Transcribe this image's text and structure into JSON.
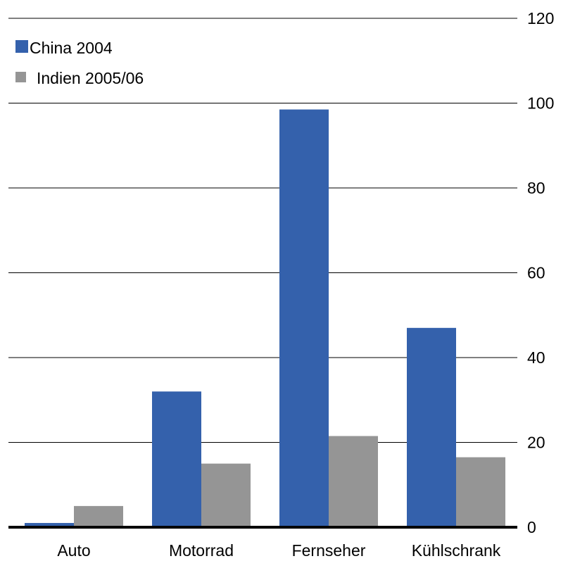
{
  "chart_data": {
    "type": "bar",
    "categories": [
      "Auto",
      "Motorrad",
      "Fernseher",
      "Kühlschrank"
    ],
    "series": [
      {
        "name": "China 2004",
        "values": [
          1,
          32,
          98.5,
          47
        ],
        "color": "#3461ac"
      },
      {
        "name": "Indien 2005/06",
        "values": [
          5,
          15,
          21.5,
          16.5
        ],
        "color": "#959595"
      }
    ],
    "title": "",
    "xlabel": "",
    "ylabel": "",
    "ylim": [
      0,
      120
    ],
    "yticks": [
      "0",
      "20",
      "40",
      "60",
      "80",
      "100",
      "120"
    ],
    "grid": true,
    "axis_position": "right",
    "legend_position": "top-left"
  }
}
